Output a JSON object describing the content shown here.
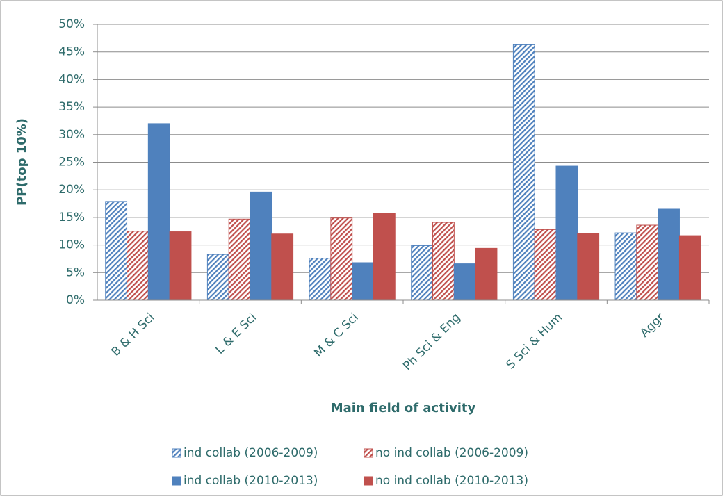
{
  "chart_data": {
    "type": "bar",
    "x_label": "Main field of activity",
    "y_label": "PP(top 10%)",
    "categories": [
      "B & H Sci",
      "L & E Sci",
      "M & C Sci",
      "Ph Sci & Eng",
      "S Sci & Hum",
      "Aggr"
    ],
    "series": [
      {
        "name": "ind collab (2006-2009)",
        "color": "#4f81bd",
        "hatch": true,
        "values": [
          17.9,
          8.3,
          7.6,
          9.9,
          46.3,
          12.2
        ]
      },
      {
        "name": "no ind collab (2006-2009)",
        "color": "#c0504d",
        "hatch": true,
        "values": [
          12.5,
          14.7,
          14.9,
          14.1,
          12.8,
          13.6
        ]
      },
      {
        "name": "ind collab (2010-2013)",
        "color": "#4f81bd",
        "hatch": false,
        "values": [
          32.0,
          19.6,
          6.8,
          6.6,
          24.3,
          16.5
        ]
      },
      {
        "name": "no ind collab (2010-2013)",
        "color": "#c0504d",
        "hatch": false,
        "values": [
          12.4,
          12.0,
          15.8,
          9.4,
          12.1,
          11.7
        ]
      }
    ],
    "ylim": [
      0,
      50
    ],
    "yticks": [
      {
        "value": 0,
        "label": "0%"
      },
      {
        "value": 5,
        "label": "5%"
      },
      {
        "value": 10,
        "label": "10%"
      },
      {
        "value": 15,
        "label": "15%"
      },
      {
        "value": 20,
        "label": "20%"
      },
      {
        "value": 25,
        "label": "25%"
      },
      {
        "value": 30,
        "label": "30%"
      },
      {
        "value": 35,
        "label": "35%"
      },
      {
        "value": 40,
        "label": "40%"
      },
      {
        "value": 45,
        "label": "45%"
      },
      {
        "value": 50,
        "label": "50%"
      }
    ],
    "grid": true,
    "legend": "bottom"
  }
}
